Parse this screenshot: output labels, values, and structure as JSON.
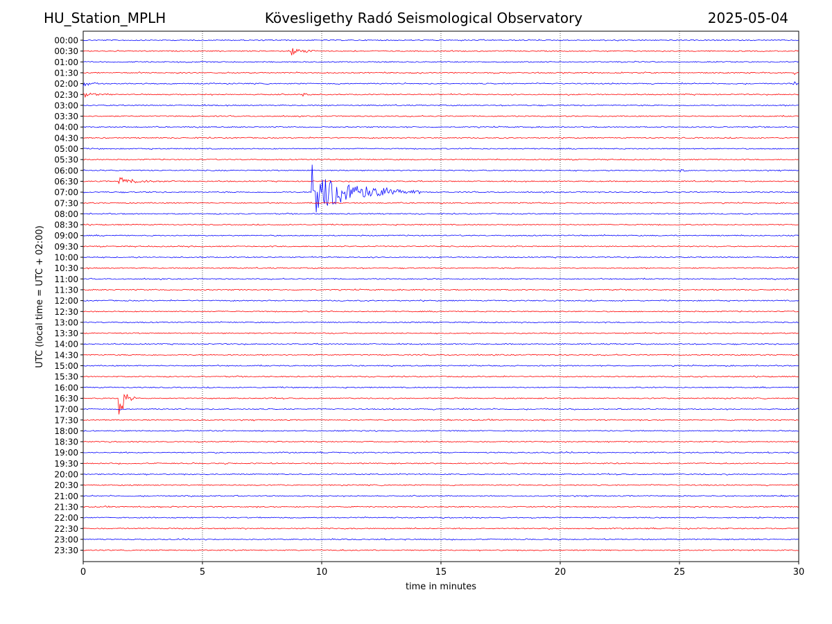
{
  "header": {
    "station": "HU_Station_MPLH",
    "observatory": "Kövesligethy Radó Seismological Observatory",
    "date": "2025-05-04"
  },
  "colors": {
    "even_row": "#0000ff",
    "odd_row": "#ff0000",
    "grid": "#000000"
  },
  "chart_data": {
    "type": "line",
    "title": "Kövesligethy Radó Seismological Observatory",
    "xlabel": "time in minutes",
    "ylabel": "UTC (local time = UTC + 02:00)",
    "xlim": [
      0,
      30
    ],
    "xticks": [
      0,
      5,
      10,
      15,
      20,
      25,
      30
    ],
    "vertical_grid": [
      5,
      10,
      15,
      20,
      25
    ],
    "rows": [
      "00:00",
      "00:30",
      "01:00",
      "01:30",
      "02:00",
      "02:30",
      "03:00",
      "03:30",
      "04:00",
      "04:30",
      "05:00",
      "05:30",
      "06:00",
      "06:30",
      "07:00",
      "07:30",
      "08:00",
      "08:30",
      "09:00",
      "09:30",
      "10:00",
      "10:30",
      "11:00",
      "11:30",
      "12:00",
      "12:30",
      "13:00",
      "13:30",
      "14:00",
      "14:30",
      "15:00",
      "15:30",
      "16:00",
      "16:30",
      "17:00",
      "17:30",
      "18:00",
      "18:30",
      "19:00",
      "19:30",
      "20:00",
      "20:30",
      "21:00",
      "21:30",
      "22:00",
      "22:30",
      "23:00",
      "23:30"
    ],
    "row_colors": "alternating blue (even rows) / red (odd rows)",
    "events": [
      {
        "row": "00:30",
        "start_min": 8.7,
        "duration_min": 1.2,
        "amplitude": 0.55
      },
      {
        "row": "01:30",
        "start_min": 29.8,
        "duration_min": 0.2,
        "amplitude": 0.35
      },
      {
        "row": "02:00",
        "start_min": 0.0,
        "duration_min": 1.0,
        "amplitude": 0.25
      },
      {
        "row": "02:00",
        "start_min": 29.8,
        "duration_min": 0.2,
        "amplitude": 0.4
      },
      {
        "row": "02:30",
        "start_min": 0.0,
        "duration_min": 1.2,
        "amplitude": 0.3
      },
      {
        "row": "02:30",
        "start_min": 9.2,
        "duration_min": 0.3,
        "amplitude": 0.5
      },
      {
        "row": "06:00",
        "start_min": 25.0,
        "duration_min": 0.4,
        "amplitude": 0.25
      },
      {
        "row": "06:30",
        "start_min": 1.5,
        "duration_min": 2.5,
        "amplitude": 0.35
      },
      {
        "row": "07:00",
        "start_min": 9.6,
        "duration_min": 4.5,
        "amplitude": 3.4
      },
      {
        "row": "16:30",
        "start_min": 1.5,
        "duration_min": 0.7,
        "amplitude": 2.6
      }
    ]
  }
}
